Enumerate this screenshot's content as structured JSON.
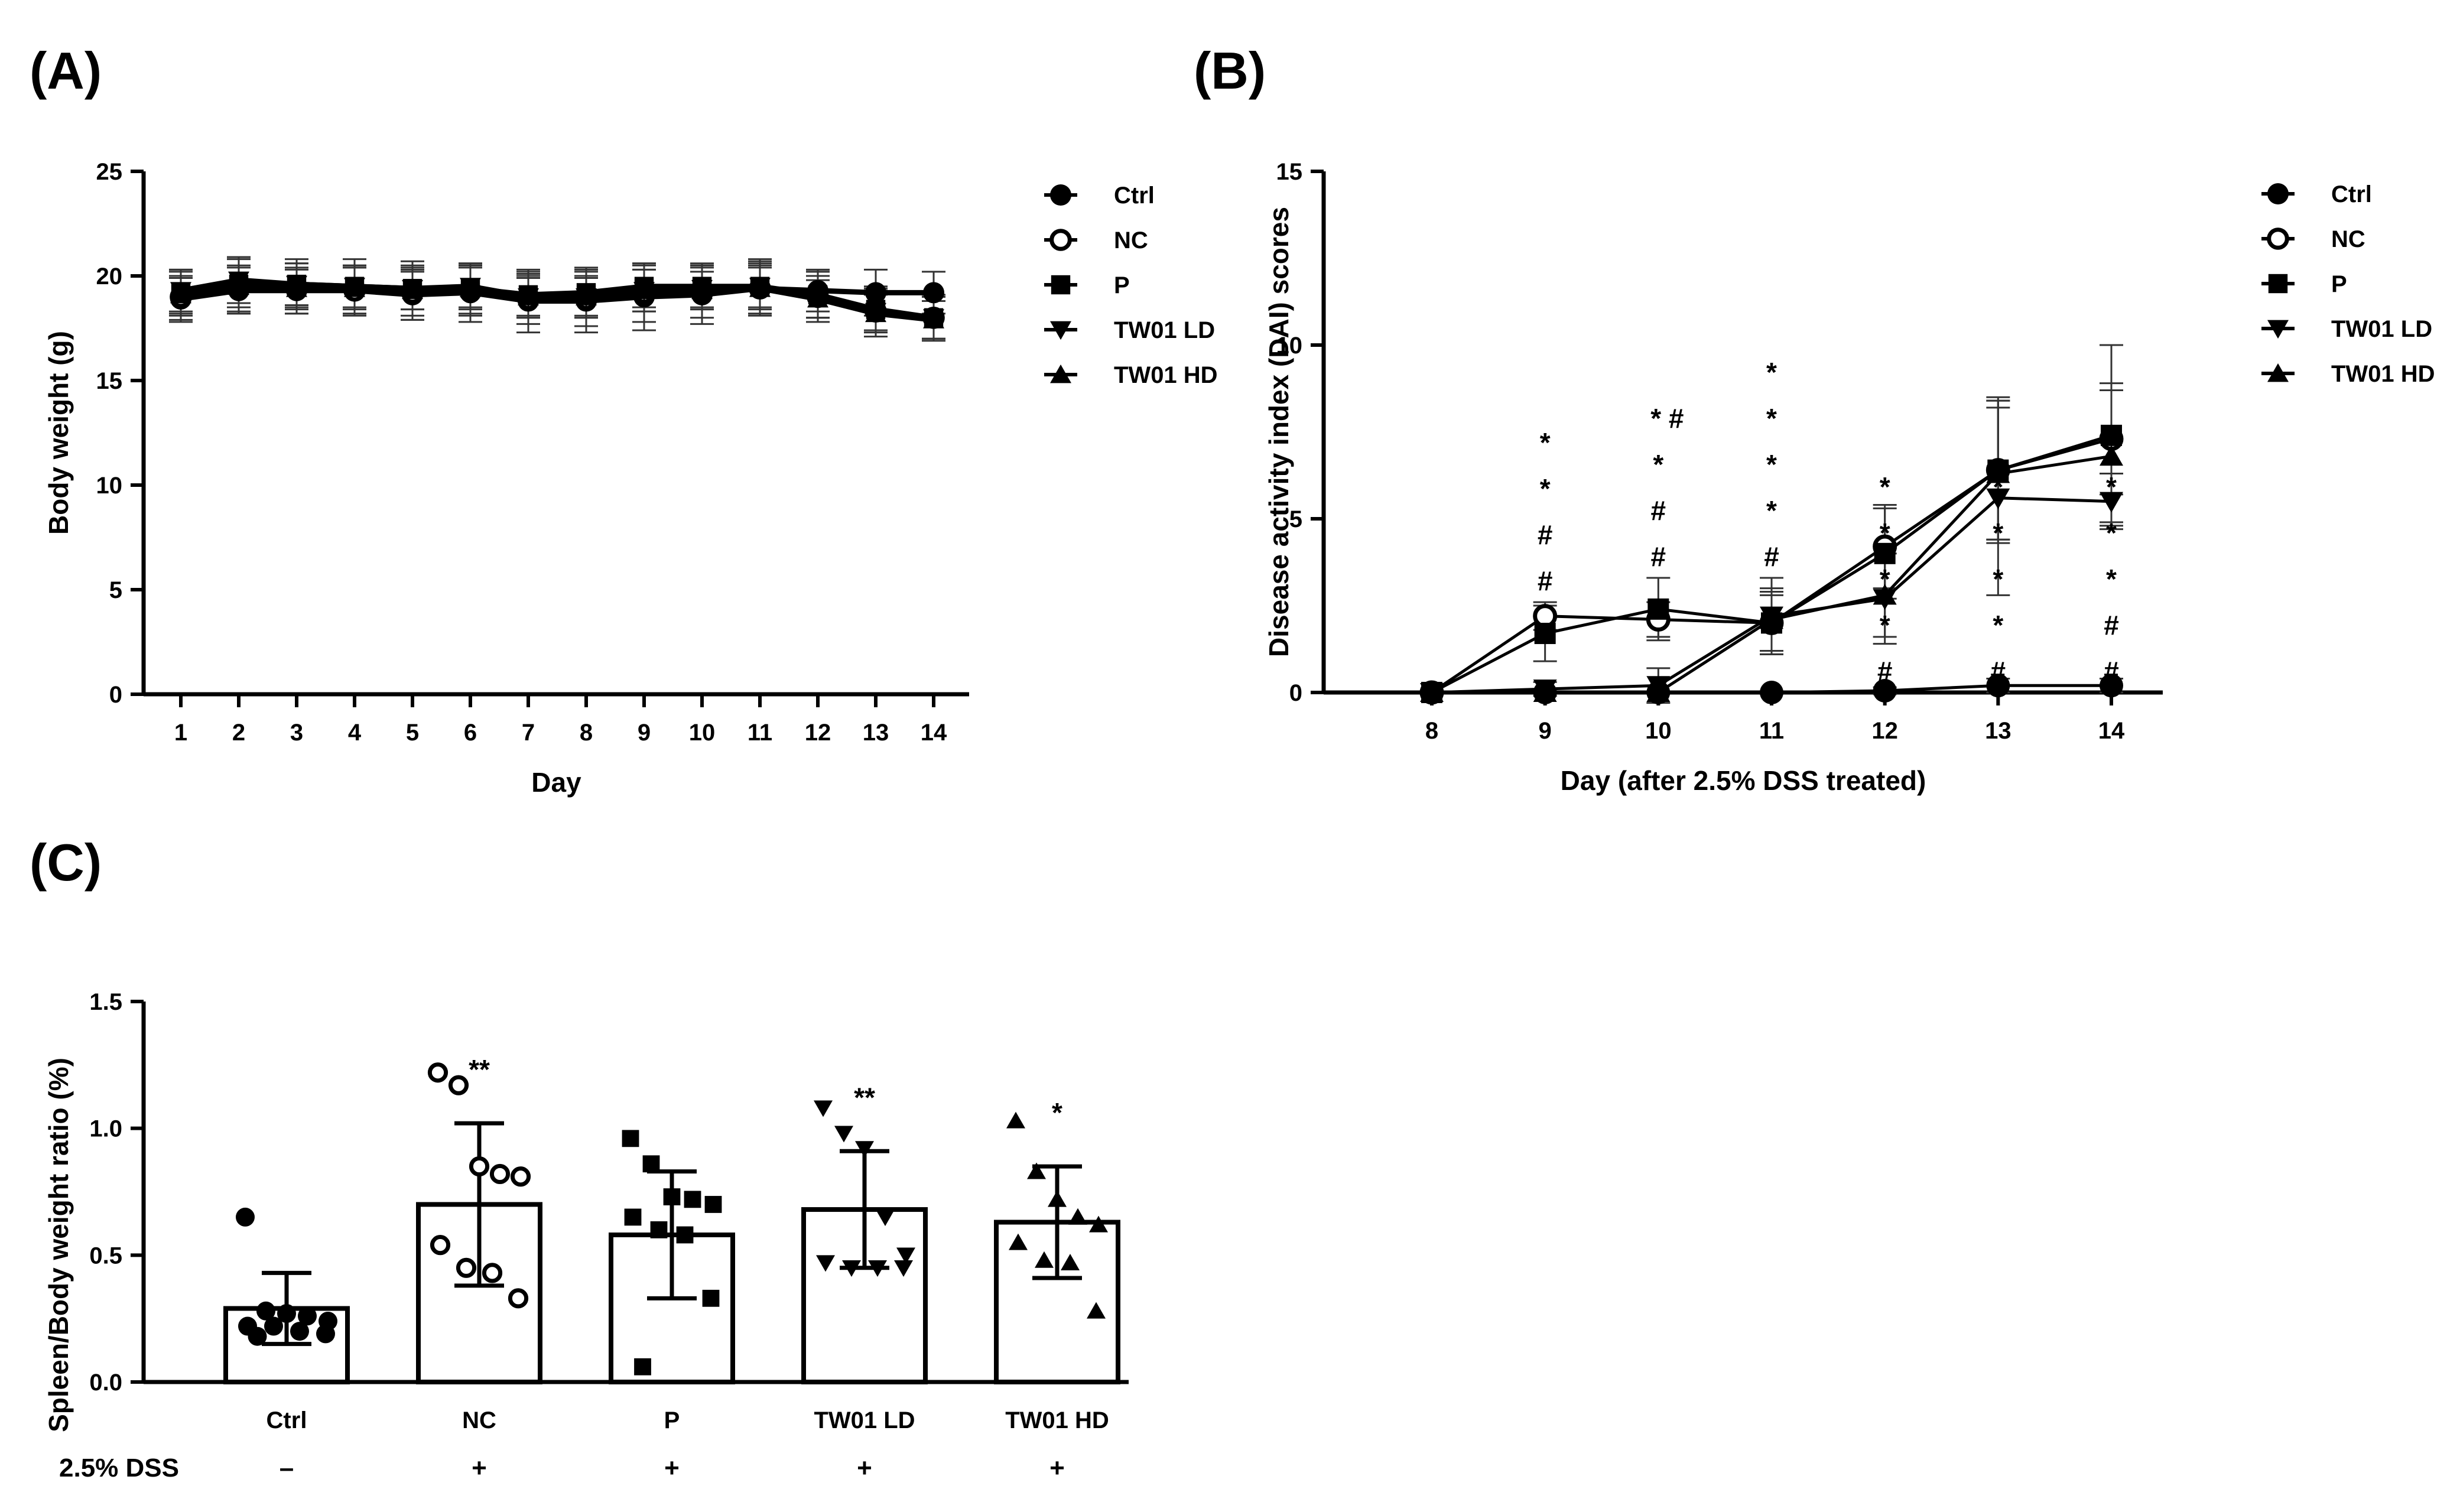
{
  "panels": {
    "a": "(A)",
    "b": "(B)",
    "c": "(C)"
  },
  "chart_data": [
    {
      "id": "A",
      "type": "line",
      "title": "",
      "xlabel": "Day",
      "ylabel": "Body weight (g)",
      "ylim": [
        0,
        25
      ],
      "yticks": [
        0,
        5,
        10,
        15,
        20,
        25
      ],
      "x": [
        1,
        2,
        3,
        4,
        5,
        6,
        7,
        8,
        9,
        10,
        11,
        12,
        13,
        14
      ],
      "series": [
        {
          "name": "Ctrl",
          "marker": "circle-filled",
          "values": [
            18.9,
            19.3,
            19.3,
            19.3,
            19.1,
            19.2,
            18.8,
            18.8,
            19.0,
            19.1,
            19.4,
            19.3,
            19.2,
            19.2
          ],
          "err": [
            1.0,
            1.1,
            1.1,
            1.1,
            1.2,
            1.4,
            1.5,
            1.5,
            1.6,
            1.4,
            1.2,
            1.0,
            1.1,
            1.0
          ]
        },
        {
          "name": "NC",
          "marker": "circle-open",
          "values": [
            19.0,
            19.5,
            19.4,
            19.3,
            19.2,
            19.3,
            18.9,
            18.9,
            19.2,
            19.3,
            19.4,
            19.0,
            18.3,
            18.0
          ],
          "err": [
            1.2,
            1.3,
            1.2,
            1.2,
            1.3,
            1.2,
            1.2,
            1.3,
            1.4,
            1.3,
            1.3,
            1.2,
            1.2,
            1.1
          ]
        },
        {
          "name": "P",
          "marker": "square",
          "values": [
            19.2,
            19.6,
            19.6,
            19.5,
            19.4,
            19.4,
            19.1,
            19.2,
            19.5,
            19.5,
            19.5,
            19.1,
            18.4,
            18.0
          ],
          "err": [
            1.1,
            1.3,
            1.2,
            1.3,
            1.3,
            1.2,
            1.1,
            1.2,
            1.0,
            1.0,
            1.3,
            1.1,
            1.0,
            1.0
          ]
        },
        {
          "name": "TW01 LD",
          "marker": "triangle-down",
          "values": [
            19.3,
            19.8,
            19.6,
            19.5,
            19.4,
            19.5,
            19.0,
            19.0,
            19.3,
            19.4,
            19.5,
            19.0,
            18.3,
            18.0
          ],
          "err": [
            1.0,
            1.1,
            1.0,
            1.0,
            1.0,
            1.0,
            1.0,
            1.0,
            1.0,
            1.0,
            1.0,
            1.0,
            1.0,
            1.0
          ]
        },
        {
          "name": "TW01 HD",
          "marker": "triangle-up",
          "values": [
            19.1,
            19.5,
            19.4,
            19.4,
            19.3,
            19.4,
            19.0,
            19.0,
            19.3,
            19.3,
            19.4,
            18.9,
            18.2,
            17.9
          ],
          "err": [
            0.9,
            1.0,
            0.9,
            1.0,
            0.9,
            1.0,
            0.9,
            0.9,
            1.0,
            0.9,
            1.0,
            0.9,
            0.9,
            0.9
          ]
        }
      ]
    },
    {
      "id": "B",
      "type": "line",
      "title": "",
      "xlabel": "Day (after 2.5% DSS treated)",
      "ylabel": "Disease activity index (DAI) scores",
      "ylim": [
        0,
        15
      ],
      "yticks": [
        0,
        5,
        10,
        15
      ],
      "x": [
        8,
        9,
        10,
        11,
        12,
        13,
        14
      ],
      "series": [
        {
          "name": "Ctrl",
          "marker": "circle-filled",
          "values": [
            0,
            0,
            0,
            0,
            0.05,
            0.2,
            0.2
          ],
          "err": [
            0,
            0,
            0,
            0,
            0.1,
            0.2,
            0.2
          ]
        },
        {
          "name": "NC",
          "marker": "circle-open",
          "values": [
            0,
            2.2,
            2.1,
            2.0,
            4.2,
            6.4,
            7.3
          ],
          "err": [
            0,
            0.4,
            0.5,
            0.8,
            1.2,
            2.0,
            1.6
          ]
        },
        {
          "name": "P",
          "marker": "square",
          "values": [
            0,
            1.7,
            2.4,
            2.0,
            4.0,
            6.4,
            7.4
          ],
          "err": [
            0,
            0.8,
            0.9,
            0.9,
            1.3,
            2.1,
            2.6
          ]
        },
        {
          "name": "TW01 LD",
          "marker": "triangle-down",
          "values": [
            0,
            0.1,
            0.2,
            2.2,
            2.7,
            5.6,
            5.5
          ],
          "err": [
            0,
            0.2,
            0.5,
            1.1,
            1.3,
            2.8,
            0.8
          ]
        },
        {
          "name": "TW01 HD",
          "marker": "triangle-up",
          "values": [
            0,
            0,
            0,
            2.1,
            2.8,
            6.3,
            6.8
          ],
          "err": [
            0,
            0,
            0,
            0.9,
            1.2,
            1.9,
            1.9
          ]
        }
      ],
      "annotations": [
        {
          "x": 9,
          "labels": [
            "*",
            "*",
            "#",
            "#"
          ]
        },
        {
          "x": 10,
          "labels": [
            "* #",
            "*",
            "#",
            "#"
          ]
        },
        {
          "x": 11,
          "labels": [
            "*",
            "*",
            "*",
            "*",
            "#"
          ]
        },
        {
          "x": 12,
          "labels": [
            "*",
            "*",
            "*",
            "*",
            "#"
          ]
        },
        {
          "x": 13,
          "labels": [
            "*",
            "*",
            "*",
            "*",
            "#"
          ]
        },
        {
          "x": 14,
          "labels": [
            "*",
            "*",
            "*",
            "#",
            "#"
          ]
        }
      ]
    },
    {
      "id": "C",
      "type": "bar",
      "title": "",
      "xlabel": "",
      "ylabel": "Spleen/Body weight ratio (%)",
      "ylim": [
        0,
        1.5
      ],
      "yticks": [
        "0.0",
        "0.5",
        "1.0",
        "1.5"
      ],
      "categories": [
        "Ctrl",
        "NC",
        "P",
        "TW01 LD",
        "TW01 HD"
      ],
      "values": [
        0.29,
        0.7,
        0.58,
        0.68,
        0.63
      ],
      "err": [
        0.14,
        0.32,
        0.25,
        0.23,
        0.22
      ],
      "significance": [
        "",
        "**",
        "",
        "**",
        "*"
      ],
      "markers": [
        "circle-filled",
        "circle-open",
        "square",
        "triangle-down",
        "triangle-up"
      ],
      "points": [
        [
          0.65,
          0.28,
          0.27,
          0.26,
          0.24,
          0.22,
          0.22,
          0.2,
          0.19,
          0.18
        ],
        [
          1.22,
          1.17,
          0.85,
          0.82,
          0.81,
          0.54,
          0.45,
          0.43,
          0.33
        ],
        [
          0.96,
          0.86,
          0.73,
          0.72,
          0.7,
          0.65,
          0.6,
          0.58,
          0.33,
          0.06
        ],
        [
          1.08,
          0.98,
          0.92,
          0.65,
          0.5,
          0.47,
          0.45,
          0.45,
          0.45
        ],
        [
          1.03,
          0.83,
          0.72,
          0.65,
          0.62,
          0.55,
          0.48,
          0.47,
          0.28
        ]
      ],
      "dss_label": "2.5% DSS",
      "dss": [
        "–",
        "+",
        "+",
        "+",
        "+"
      ]
    }
  ]
}
